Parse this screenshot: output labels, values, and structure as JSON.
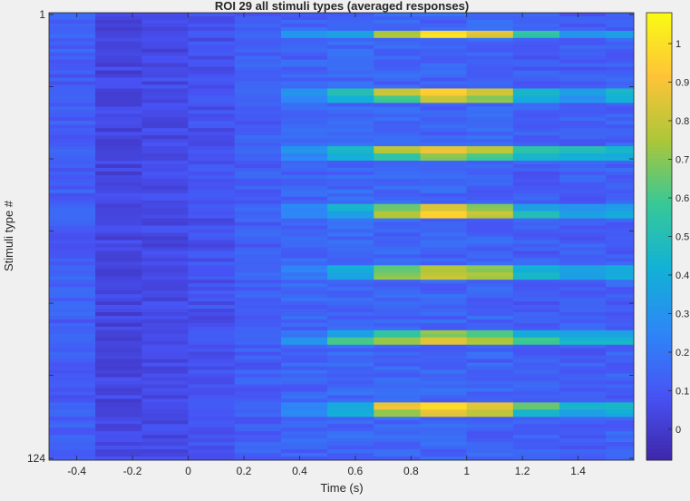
{
  "chart_data": {
    "type": "heatmap",
    "title": "ROI 29 all stimuli types (averaged responses)",
    "xlabel": "Time (s)",
    "ylabel": "Stimuli type #",
    "colormap": "parula",
    "x_tick_labels": [
      "-0.4",
      "-0.2",
      "0",
      "0.2",
      "0.4",
      "0.6",
      "0.8",
      "1",
      "1.2",
      "1.4"
    ],
    "x_ticks": [
      -0.4,
      -0.2,
      0,
      0.2,
      0.4,
      0.6,
      0.8,
      1,
      1.2,
      1.4
    ],
    "xlim": [
      -0.5,
      1.6
    ],
    "time_bins": [
      -0.417,
      -0.25,
      -0.083,
      0.083,
      0.25,
      0.417,
      0.583,
      0.75,
      0.917,
      1.083,
      1.25,
      1.417,
      1.583
    ],
    "y_tick_labels": [
      "1",
      "124"
    ],
    "y_ticks": [
      1,
      124
    ],
    "n_rows": 124,
    "clim": [
      -0.08,
      1.08
    ],
    "colorbar_ticks": [
      0,
      0.1,
      0.2,
      0.3,
      0.4,
      0.5,
      0.6,
      0.7,
      0.8,
      0.9,
      1
    ],
    "colorbar_tick_labels": [
      "0",
      "0.1",
      "0.2",
      "0.3",
      "0.4",
      "0.5",
      "0.6",
      "0.7",
      "0.8",
      "0.9",
      "1"
    ],
    "strong_responses": [
      {
        "rows": [
          5,
          6
        ],
        "values": [
          0.15,
          0.02,
          0.05,
          0.1,
          0.15,
          0.3,
          0.35,
          0.75,
          1.0,
          0.85,
          0.55,
          0.3,
          0.35
        ]
      },
      {
        "rows": [
          21,
          22
        ],
        "values": [
          0.15,
          0.02,
          0.05,
          0.1,
          0.15,
          0.3,
          0.5,
          0.82,
          0.95,
          0.82,
          0.45,
          0.35,
          0.45
        ]
      },
      {
        "rows": [
          23,
          24
        ],
        "values": [
          0.15,
          0.02,
          0.05,
          0.1,
          0.15,
          0.25,
          0.4,
          0.6,
          0.8,
          0.7,
          0.4,
          0.3,
          0.4
        ]
      },
      {
        "rows": [
          37,
          38
        ],
        "values": [
          0.15,
          0.02,
          0.05,
          0.1,
          0.15,
          0.3,
          0.45,
          0.78,
          0.88,
          0.8,
          0.55,
          0.5,
          0.45
        ]
      },
      {
        "rows": [
          39,
          40
        ],
        "values": [
          0.15,
          0.02,
          0.05,
          0.1,
          0.15,
          0.25,
          0.4,
          0.55,
          0.7,
          0.6,
          0.45,
          0.4,
          0.4
        ]
      },
      {
        "rows": [
          53,
          54
        ],
        "values": [
          0.15,
          0.02,
          0.05,
          0.1,
          0.15,
          0.25,
          0.45,
          0.65,
          0.85,
          0.7,
          0.35,
          0.3,
          0.35
        ]
      },
      {
        "rows": [
          55,
          56
        ],
        "values": [
          0.15,
          0.02,
          0.05,
          0.1,
          0.15,
          0.25,
          0.35,
          0.75,
          0.95,
          0.8,
          0.5,
          0.35,
          0.4
        ]
      },
      {
        "rows": [
          70,
          71
        ],
        "values": [
          0.15,
          0.02,
          0.05,
          0.1,
          0.15,
          0.25,
          0.4,
          0.65,
          0.75,
          0.7,
          0.4,
          0.35,
          0.4
        ]
      },
      {
        "rows": [
          72,
          73
        ],
        "values": [
          0.15,
          0.02,
          0.05,
          0.1,
          0.15,
          0.2,
          0.35,
          0.7,
          0.8,
          0.75,
          0.45,
          0.35,
          0.4
        ]
      },
      {
        "rows": [
          88,
          89
        ],
        "values": [
          0.15,
          0.02,
          0.05,
          0.1,
          0.15,
          0.2,
          0.35,
          0.55,
          0.7,
          0.6,
          0.4,
          0.35,
          0.35
        ]
      },
      {
        "rows": [
          90,
          91
        ],
        "values": [
          0.15,
          0.02,
          0.05,
          0.1,
          0.15,
          0.3,
          0.6,
          0.72,
          0.85,
          0.75,
          0.6,
          0.45,
          0.45
        ]
      },
      {
        "rows": [
          108,
          109
        ],
        "values": [
          0.15,
          0.02,
          0.05,
          0.1,
          0.15,
          0.25,
          0.4,
          0.88,
          0.98,
          0.85,
          0.65,
          0.45,
          0.45
        ]
      },
      {
        "rows": [
          110,
          111
        ],
        "values": [
          0.15,
          0.02,
          0.05,
          0.1,
          0.15,
          0.25,
          0.4,
          0.72,
          0.85,
          0.78,
          0.45,
          0.35,
          0.4
        ]
      }
    ]
  }
}
